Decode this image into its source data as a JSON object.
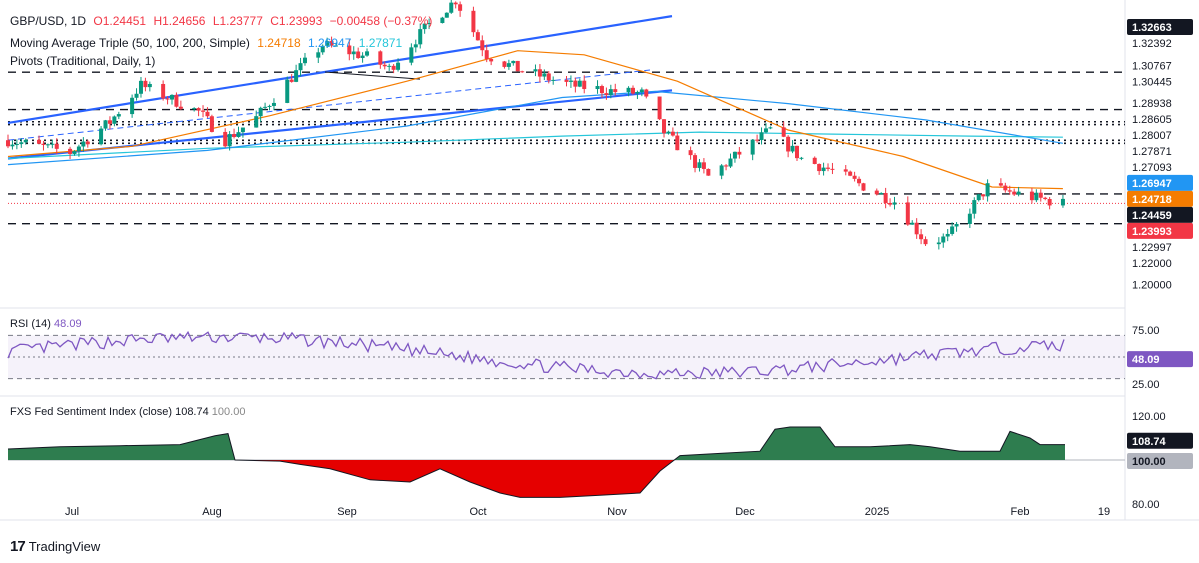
{
  "header": {
    "symbol": "GBP/USD, 1D",
    "open": "O1.24451",
    "high": "H1.24656",
    "low": "L1.23777",
    "close": "C1.23993",
    "change": "−0.00458 (−0.37%)",
    "ma_label": "Moving Average Triple (50, 100, 200, Simple)",
    "ma50": "1.24718",
    "ma100": "1.26947",
    "ma200": "1.27871",
    "pivots_label": "Pivots (Traditional, Daily, 1)"
  },
  "colors": {
    "up": "#089981",
    "down": "#f23645",
    "ma50": "#f57c00",
    "ma100": "#2196f3",
    "ma200": "#26c6da",
    "trend": "#2962ff",
    "rsi": "#7e57c2",
    "sentiment_pos": "#2e7d4f",
    "sentiment_neg": "#e50000"
  },
  "price_axis": {
    "ticks": [
      "1.32663",
      "1.32392",
      "1.30767",
      "1.30445",
      "1.28938",
      "1.28605",
      "1.28007",
      "1.27871",
      "1.27093",
      "1.26947",
      "1.24718",
      "1.24459",
      "1.23993",
      "1.22997",
      "1.22000",
      "1.20000"
    ],
    "badges": [
      {
        "label": "1.32663",
        "bg": "#131722",
        "fg": "#ffffff"
      },
      {
        "label": "1.24459",
        "bg": "#131722",
        "fg": "#ffffff"
      },
      {
        "label": "1.26947",
        "bg": "#2196f3",
        "fg": "#ffffff"
      },
      {
        "label": "1.24718",
        "bg": "#f57c00",
        "fg": "#ffffff"
      },
      {
        "label": "1.23993",
        "bg": "#f23645",
        "fg": "#ffffff"
      }
    ]
  },
  "pivot_levels": [
    1.30445,
    1.28605,
    1.28007,
    1.27871,
    1.27093,
    1.26947,
    1.24459,
    1.22997
  ],
  "time_axis": [
    "Jul",
    "Aug",
    "Sep",
    "Oct",
    "Nov",
    "Dec",
    "2025",
    "Feb",
    "19"
  ],
  "rsi": {
    "label": "RSI (14)",
    "value": "48.09",
    "ticks": [
      "75.00",
      "25.00"
    ],
    "badge": "48.09"
  },
  "sentiment": {
    "label": "FXS Fed Sentiment Index (close)",
    "value1": "108.74",
    "value2": "100.00",
    "ticks": [
      "120.00",
      "80.00"
    ],
    "badge1": "108.74",
    "badge2": "100.00"
  },
  "brand": "TradingView",
  "chart_data": {
    "type": "candlestick",
    "symbol": "GBP/USD",
    "interval": "1D",
    "x_range": [
      "2024-06-17",
      "2025-02-24"
    ],
    "y_range": [
      1.19,
      1.335
    ],
    "ohlc_last": {
      "open": 1.24451,
      "high": 1.24656,
      "low": 1.23777,
      "close": 1.23993
    },
    "close_path_approx": [
      {
        "date": "2024-06-17",
        "close": 1.271
      },
      {
        "date": "2024-07-01",
        "close": 1.265
      },
      {
        "date": "2024-07-10",
        "close": 1.28
      },
      {
        "date": "2024-07-17",
        "close": 1.298
      },
      {
        "date": "2024-07-30",
        "close": 1.285
      },
      {
        "date": "2024-08-05",
        "close": 1.271
      },
      {
        "date": "2024-08-12",
        "close": 1.282
      },
      {
        "date": "2024-08-20",
        "close": 1.302
      },
      {
        "date": "2024-08-27",
        "close": 1.318
      },
      {
        "date": "2024-09-06",
        "close": 1.312
      },
      {
        "date": "2024-09-11",
        "close": 1.306
      },
      {
        "date": "2024-09-20",
        "close": 1.328
      },
      {
        "date": "2024-09-26",
        "close": 1.34
      },
      {
        "date": "2024-10-03",
        "close": 1.313
      },
      {
        "date": "2024-10-10",
        "close": 1.306
      },
      {
        "date": "2024-10-22",
        "close": 1.298
      },
      {
        "date": "2024-11-01",
        "close": 1.295
      },
      {
        "date": "2024-11-07",
        "close": 1.294
      },
      {
        "date": "2024-11-12",
        "close": 1.275
      },
      {
        "date": "2024-11-22",
        "close": 1.253
      },
      {
        "date": "2024-12-06",
        "close": 1.276
      },
      {
        "date": "2024-12-13",
        "close": 1.262
      },
      {
        "date": "2024-12-20",
        "close": 1.256
      },
      {
        "date": "2025-01-03",
        "close": 1.241
      },
      {
        "date": "2025-01-10",
        "close": 1.221
      },
      {
        "date": "2025-01-15",
        "close": 1.223
      },
      {
        "date": "2025-01-24",
        "close": 1.248
      },
      {
        "date": "2025-02-03",
        "close": 1.243
      },
      {
        "date": "2025-02-10",
        "close": 1.2399
      }
    ]
  }
}
